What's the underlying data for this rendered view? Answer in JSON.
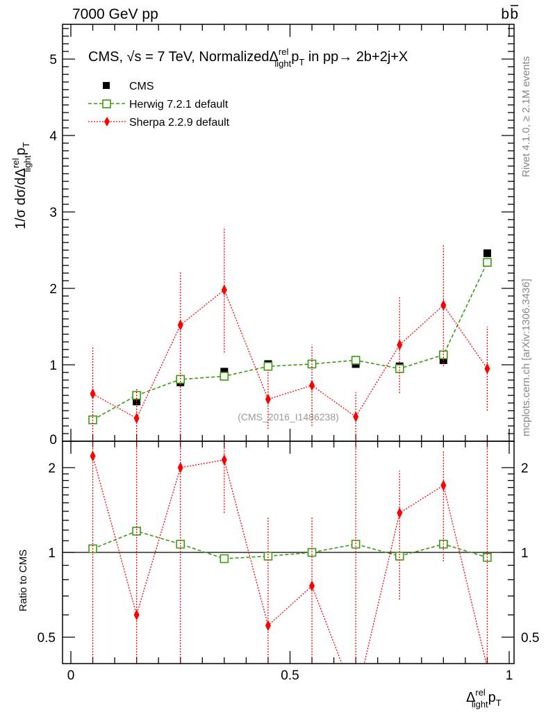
{
  "header": {
    "left": "7000 GeV pp",
    "right_main": "b",
    "right_bar": "b"
  },
  "side": {
    "rivet": "Rivet 4.1.0, ≥ 2.1M events",
    "mcplots": "mcplots.cern.ch [arXiv:1306.3436]"
  },
  "watermark": "(CMS_2016_I1486238)",
  "chart_data": [
    {
      "type": "line",
      "title": {
        "pre": "CMS, √s = 7 TeV, Normalized",
        "delta": "Δ",
        "sup": "rel",
        "sub": "light",
        "p": "p",
        "t": "T",
        "post": " in pp→  2b+2j+X"
      },
      "ylabel": {
        "pre": "1/σ dσ/dΔ",
        "sup": "rel",
        "sub": "light",
        "p": "p",
        "t": "T"
      },
      "xlim": [
        0,
        1
      ],
      "ylim": [
        0,
        5.45
      ],
      "yticks": [
        "0",
        "1",
        "2",
        "3",
        "4",
        "5"
      ],
      "x": [
        0.05,
        0.15,
        0.25,
        0.35,
        0.45,
        0.55,
        0.65,
        0.75,
        0.85,
        0.95
      ],
      "series": [
        {
          "name": "CMS",
          "color": "#000000",
          "marker": "square-filled",
          "values": [
            0.28,
            0.52,
            0.77,
            0.91,
            1.01,
            1.01,
            1.01,
            0.98,
            1.06,
            2.46
          ]
        },
        {
          "name": "Herwig 7.2.1 default",
          "color": "#3a9a10",
          "marker": "square-open",
          "values": [
            0.28,
            0.6,
            0.81,
            0.85,
            0.98,
            1.01,
            1.06,
            0.95,
            1.13,
            2.34
          ]
        },
        {
          "name": "Sherpa 2.2.9 default",
          "color": "#ff0000",
          "marker": "diamond",
          "values": [
            0.62,
            0.3,
            1.52,
            1.98,
            0.55,
            0.73,
            0.32,
            1.26,
            1.78,
            0.95
          ],
          "err_low": [
            -0.1,
            -0.1,
            -0.1,
            1.16,
            0.16,
            0.2,
            -0.1,
            0.63,
            0.98,
            0.4
          ],
          "err_high": [
            1.24,
            0.7,
            2.21,
            2.8,
            0.94,
            1.26,
            0.64,
            1.89,
            2.58,
            1.5
          ]
        }
      ]
    },
    {
      "type": "line",
      "ylabel": "Ratio to CMS",
      "xlabel": {
        "delta": "Δ",
        "sup": "rel",
        "sub": "light",
        "p": "p",
        "t": "T"
      },
      "yscale": "log",
      "ylim": [
        0.42,
        2.3
      ],
      "yticks": [
        "0.5",
        "1",
        "2"
      ],
      "xticks": [
        "0",
        "0.5",
        "1"
      ],
      "x": [
        0.05,
        0.15,
        0.25,
        0.35,
        0.45,
        0.55,
        0.65,
        0.75,
        0.85,
        0.95
      ],
      "series": [
        {
          "name": "Herwig 7.2.1 default",
          "color": "#3a9a10",
          "values": [
            1.03,
            1.19,
            1.07,
            0.95,
            0.97,
            1.0,
            1.07,
            0.97,
            1.07,
            0.96
          ]
        },
        {
          "name": "Sherpa 2.2.9 default",
          "color": "#ff0000",
          "values": [
            2.2,
            0.6,
            2.0,
            2.13,
            0.55,
            0.76,
            0.3,
            1.38,
            1.73,
            0.39
          ],
          "err_low": [
            0.3,
            0.3,
            0.3,
            1.38,
            0.3,
            0.3,
            0.3,
            0.68,
            0.93,
            0.3
          ],
          "err_high": [
            3,
            3,
            3,
            3,
            1.33,
            1.33,
            3,
            1.95,
            2.3,
            3
          ]
        }
      ]
    }
  ]
}
